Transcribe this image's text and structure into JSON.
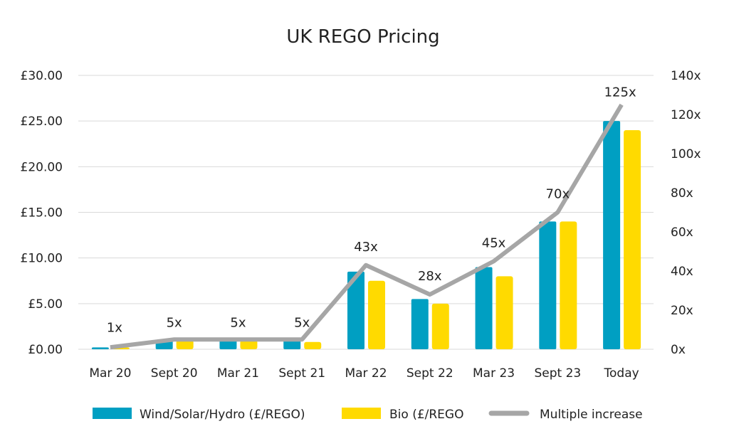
{
  "chart_data": {
    "type": "bar",
    "title": "UK REGO Pricing",
    "categories": [
      "Mar 20",
      "Sept 20",
      "Mar 21",
      "Sept 21",
      "Mar 22",
      "Sept 22",
      "Mar 23",
      "Sept 23",
      "Today"
    ],
    "series": [
      {
        "name": "Wind/Solar/Hydro (£/REGO)",
        "type": "bar",
        "axis": "left",
        "color": "#009FC2",
        "values": [
          0.2,
          1.0,
          1.0,
          1.0,
          8.5,
          5.5,
          9.0,
          14.0,
          25.0
        ]
      },
      {
        "name": "Bio (£/REGO",
        "type": "bar",
        "axis": "left",
        "color": "#FFDA00",
        "values": [
          0.2,
          1.0,
          1.0,
          0.8,
          7.5,
          5.0,
          8.0,
          14.0,
          24.0
        ]
      },
      {
        "name": "Multiple increase",
        "type": "line",
        "axis": "right",
        "color": "#A6A6A6",
        "values": [
          1,
          5,
          5,
          5,
          43,
          28,
          45,
          70,
          125
        ],
        "data_labels": [
          "1x",
          "5x",
          "5x",
          "5x",
          "43x",
          "28x",
          "45x",
          "70x",
          "125x"
        ]
      }
    ],
    "left_axis": {
      "ylim": [
        0,
        30
      ],
      "ticks": [
        "£0.00",
        "£5.00",
        "£10.00",
        "£15.00",
        "£20.00",
        "£25.00",
        "£30.00"
      ]
    },
    "right_axis": {
      "ylim": [
        0,
        140
      ],
      "ticks": [
        "0x",
        "20x",
        "40x",
        "60x",
        "80x",
        "100x",
        "120x",
        "140x"
      ]
    },
    "grid": true,
    "legend": "bottom"
  }
}
